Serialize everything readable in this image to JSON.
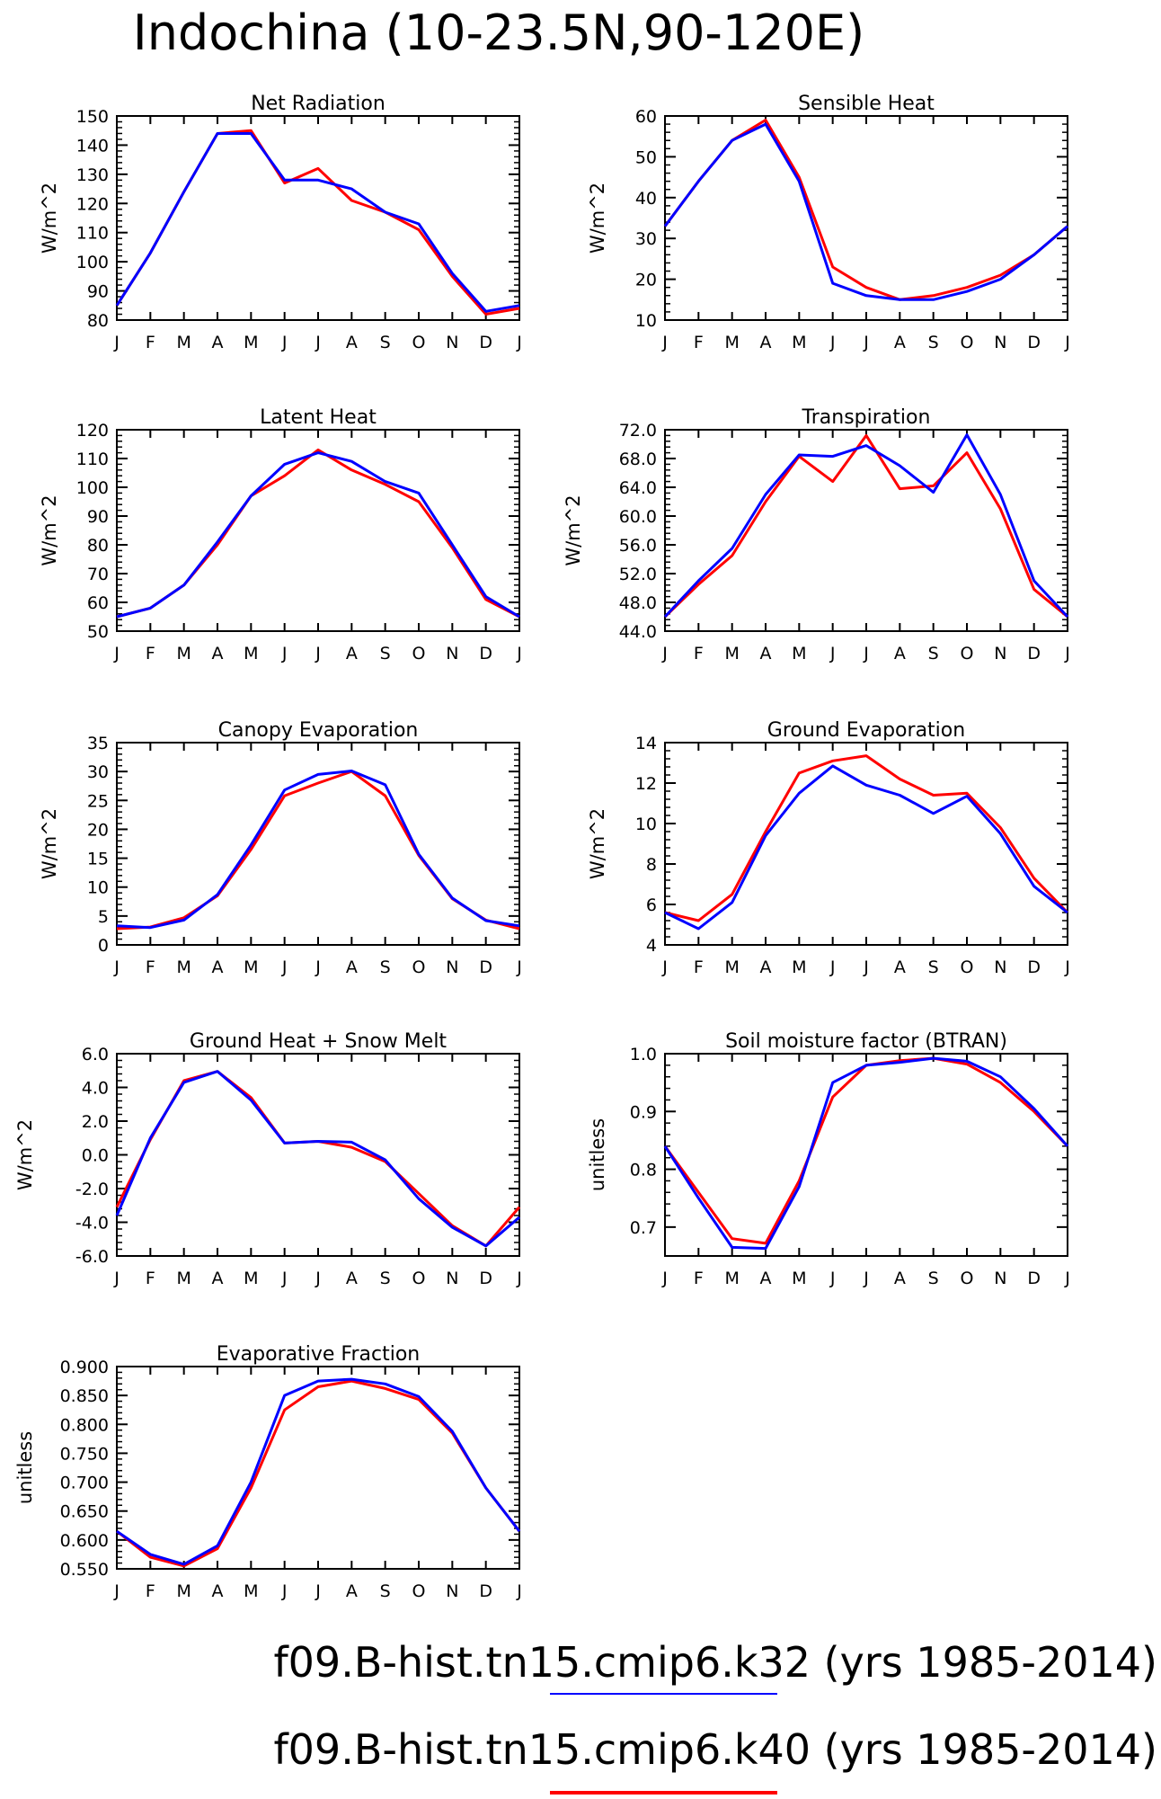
{
  "figure_title": "Indochina (10-23.5N,90-120E)",
  "legend": [
    {
      "label": "f09.B-hist.tn15.cmip6.k32 (yrs 1985-2014)",
      "color": "#0000ff"
    },
    {
      "label": "f09.B-hist.tn15.cmip6.k40 (yrs 1985-2014)",
      "color": "#ff0000"
    }
  ],
  "colors": {
    "k32": "#0000ff",
    "k40": "#ff0000"
  },
  "chart_data": [
    {
      "type": "line",
      "title": "Net Radiation",
      "ylabel": "W/m^2",
      "categories": [
        "J",
        "F",
        "M",
        "A",
        "M",
        "J",
        "J",
        "A",
        "S",
        "O",
        "N",
        "D",
        "J"
      ],
      "ylim": [
        80,
        150
      ],
      "yticks": [
        "80",
        "90",
        "100",
        "110",
        "120",
        "130",
        "140",
        "150"
      ],
      "series": [
        {
          "key": "k40",
          "values": [
            85,
            103,
            124,
            144,
            145,
            127,
            132,
            121,
            117,
            111,
            95,
            82,
            84
          ]
        },
        {
          "key": "k32",
          "values": [
            85,
            103,
            124,
            144,
            144,
            128,
            128,
            125,
            117,
            113,
            96,
            83,
            85
          ]
        }
      ]
    },
    {
      "type": "line",
      "title": "Sensible Heat",
      "ylabel": "W/m^2",
      "categories": [
        "J",
        "F",
        "M",
        "A",
        "M",
        "J",
        "J",
        "A",
        "S",
        "O",
        "N",
        "D",
        "J"
      ],
      "ylim": [
        10,
        60
      ],
      "yticks": [
        "10",
        "20",
        "30",
        "40",
        "50",
        "60"
      ],
      "series": [
        {
          "key": "k40",
          "values": [
            33,
            44,
            54,
            59,
            45,
            23,
            18,
            15,
            16,
            18,
            21,
            26,
            33
          ]
        },
        {
          "key": "k32",
          "values": [
            33,
            44,
            54,
            58,
            44,
            19,
            16,
            15,
            15,
            17,
            20,
            26,
            33
          ]
        }
      ]
    },
    {
      "type": "line",
      "title": "Latent Heat",
      "ylabel": "W/m^2",
      "categories": [
        "J",
        "F",
        "M",
        "A",
        "M",
        "J",
        "J",
        "A",
        "S",
        "O",
        "N",
        "D",
        "J"
      ],
      "ylim": [
        50,
        120
      ],
      "yticks": [
        "50",
        "60",
        "70",
        "80",
        "90",
        "100",
        "110",
        "120"
      ],
      "series": [
        {
          "key": "k40",
          "values": [
            55,
            58,
            66,
            80,
            97,
            104,
            113,
            106,
            101,
            95,
            79,
            61,
            55
          ]
        },
        {
          "key": "k32",
          "values": [
            55,
            58,
            66,
            81,
            97,
            108,
            112,
            109,
            102,
            98,
            80,
            62,
            55
          ]
        }
      ]
    },
    {
      "type": "line",
      "title": "Transpiration",
      "ylabel": "W/m^2",
      "categories": [
        "J",
        "F",
        "M",
        "A",
        "M",
        "J",
        "J",
        "A",
        "S",
        "O",
        "N",
        "D",
        "J"
      ],
      "ylim": [
        44,
        72
      ],
      "yticks": [
        "44.0",
        "48.0",
        "52.0",
        "56.0",
        "60.0",
        "64.0",
        "68.0",
        "72.0"
      ],
      "series": [
        {
          "key": "k40",
          "values": [
            46,
            50.5,
            54.5,
            62,
            68.3,
            64.8,
            71.2,
            63.8,
            64.2,
            68.8,
            61,
            49.8,
            46
          ]
        },
        {
          "key": "k32",
          "values": [
            46,
            51,
            55.5,
            63,
            68.5,
            68.3,
            69.8,
            67,
            63.3,
            71.3,
            63,
            51,
            46
          ]
        }
      ]
    },
    {
      "type": "line",
      "title": "Canopy Evaporation",
      "ylabel": "W/m^2",
      "categories": [
        "J",
        "F",
        "M",
        "A",
        "M",
        "J",
        "J",
        "A",
        "S",
        "O",
        "N",
        "D",
        "J"
      ],
      "ylim": [
        0,
        35
      ],
      "yticks": [
        "0",
        "5",
        "10",
        "15",
        "20",
        "25",
        "30",
        "35"
      ],
      "series": [
        {
          "key": "k40",
          "values": [
            2.8,
            3.1,
            4.7,
            8.5,
            16.5,
            25.8,
            28,
            30,
            25.8,
            15.5,
            8,
            4.3,
            2.8
          ]
        },
        {
          "key": "k32",
          "values": [
            3.3,
            3,
            4.3,
            8.7,
            17.3,
            26.8,
            29.5,
            30.1,
            27.7,
            15.7,
            8.1,
            4.2,
            3.3
          ]
        }
      ]
    },
    {
      "type": "line",
      "title": "Ground Evaporation",
      "ylabel": "W/m^2",
      "categories": [
        "J",
        "F",
        "M",
        "A",
        "M",
        "J",
        "J",
        "A",
        "S",
        "O",
        "N",
        "D",
        "J"
      ],
      "ylim": [
        4,
        14
      ],
      "yticks": [
        "4",
        "6",
        "8",
        "10",
        "12",
        "14"
      ],
      "series": [
        {
          "key": "k40",
          "values": [
            5.6,
            5.2,
            6.5,
            9.6,
            12.5,
            13.1,
            13.35,
            12.2,
            11.4,
            11.5,
            9.8,
            7.3,
            5.6
          ]
        },
        {
          "key": "k32",
          "values": [
            5.6,
            4.8,
            6.1,
            9.4,
            11.5,
            12.85,
            11.9,
            11.4,
            10.5,
            11.35,
            9.5,
            6.9,
            5.6
          ]
        }
      ]
    },
    {
      "type": "line",
      "title": "Ground Heat + Snow Melt",
      "ylabel": "W/m^2",
      "categories": [
        "J",
        "F",
        "M",
        "A",
        "M",
        "J",
        "J",
        "A",
        "S",
        "O",
        "N",
        "D",
        "J"
      ],
      "ylim": [
        -6,
        6
      ],
      "yticks": [
        "-6.0",
        "-4.0",
        "-2.0",
        "0.0",
        "2.0",
        "4.0",
        "6.0"
      ],
      "series": [
        {
          "key": "k40",
          "values": [
            -3.1,
            0.9,
            4.4,
            4.95,
            3.4,
            0.7,
            0.8,
            0.45,
            -0.4,
            -2.3,
            -4.2,
            -5.4,
            -3.1
          ]
        },
        {
          "key": "k32",
          "values": [
            -3.6,
            1.0,
            4.3,
            4.95,
            3.25,
            0.7,
            0.8,
            0.75,
            -0.3,
            -2.6,
            -4.3,
            -5.4,
            -3.7
          ]
        }
      ]
    },
    {
      "type": "line",
      "title": "Soil moisture factor (BTRAN)",
      "ylabel": "unitless",
      "categories": [
        "J",
        "F",
        "M",
        "A",
        "M",
        "J",
        "J",
        "A",
        "S",
        "O",
        "N",
        "D",
        "J"
      ],
      "ylim": [
        0.65,
        1.0
      ],
      "yticks": [
        "0.7",
        "0.8",
        "0.9",
        "1.0"
      ],
      "series": [
        {
          "key": "k40",
          "values": [
            0.84,
            0.76,
            0.68,
            0.672,
            0.78,
            0.925,
            0.98,
            0.988,
            0.992,
            0.982,
            0.95,
            0.9,
            0.84
          ]
        },
        {
          "key": "k32",
          "values": [
            0.84,
            0.75,
            0.665,
            0.663,
            0.77,
            0.95,
            0.98,
            0.985,
            0.992,
            0.987,
            0.96,
            0.905,
            0.84
          ]
        }
      ]
    },
    {
      "type": "line",
      "title": "Evaporative Fraction",
      "ylabel": "unitless",
      "categories": [
        "J",
        "F",
        "M",
        "A",
        "M",
        "J",
        "J",
        "A",
        "S",
        "O",
        "N",
        "D",
        "J"
      ],
      "ylim": [
        0.55,
        0.9
      ],
      "yticks": [
        "0.550",
        "0.600",
        "0.650",
        "0.700",
        "0.750",
        "0.800",
        "0.850",
        "0.900"
      ],
      "series": [
        {
          "key": "k40",
          "values": [
            0.615,
            0.57,
            0.555,
            0.585,
            0.69,
            0.825,
            0.865,
            0.875,
            0.862,
            0.843,
            0.785,
            0.69,
            0.615
          ]
        },
        {
          "key": "k32",
          "values": [
            0.615,
            0.575,
            0.558,
            0.59,
            0.7,
            0.85,
            0.875,
            0.878,
            0.87,
            0.848,
            0.788,
            0.69,
            0.615
          ]
        }
      ]
    }
  ]
}
